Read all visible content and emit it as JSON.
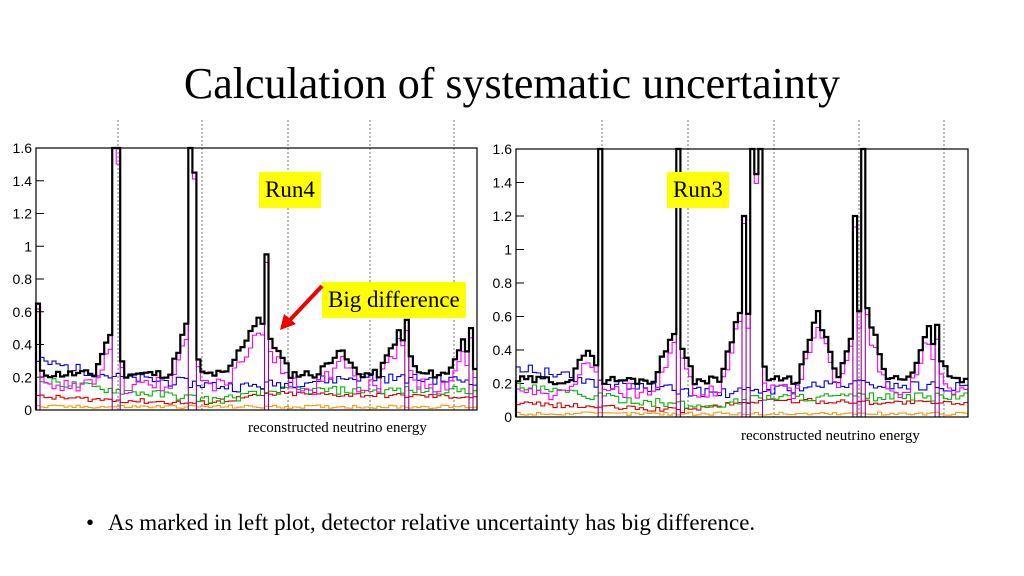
{
  "slide": {
    "title": "Calculation of systematic uncertainty",
    "bullet": "As marked in left plot, detector relative uncertainty has big difference.",
    "annotation": "Big difference"
  },
  "colors": {
    "black": "#000000",
    "magenta": "#ff00ff",
    "purple": "#9b009b",
    "blue": "#0000dd",
    "green": "#00bb00",
    "red": "#dd0000",
    "orange": "#ff9900",
    "tag": "#ffff00",
    "arrow": "#ee0000"
  },
  "chart_data": [
    {
      "type": "line",
      "label": "Run4",
      "xlabel": "reconstructed neutrino energy",
      "ylim": [
        0,
        1.6
      ],
      "yticks": [
        "0",
        "0.2",
        "0.4",
        "0.6",
        "0.8",
        "1",
        "1.2",
        "1.4",
        "1.6"
      ],
      "series_colors": [
        "#000000",
        "#ff00ff",
        "#9b009b",
        "#0000dd",
        "#00bb00",
        "#dd0000",
        "#ff9900"
      ]
    },
    {
      "type": "line",
      "label": "Run3",
      "xlabel": "reconstructed neutrino energy",
      "ylim": [
        0,
        1.6
      ],
      "yticks": [
        "0",
        "0.2",
        "0.4",
        "0.6",
        "0.8",
        "1",
        "1.2",
        "1.4",
        "1.6"
      ],
      "series_colors": [
        "#000000",
        "#ff00ff",
        "#9b009b",
        "#0000dd",
        "#00bb00",
        "#dd0000",
        "#ff9900"
      ]
    }
  ]
}
